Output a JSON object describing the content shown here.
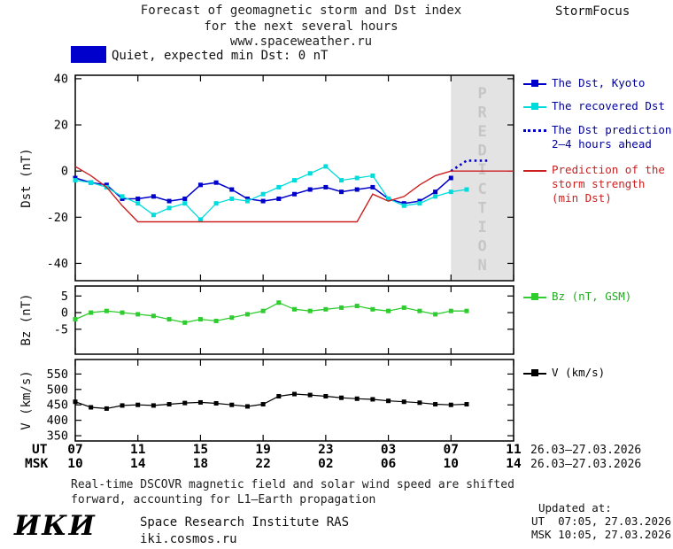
{
  "header": {
    "title_line1": "Forecast of geomagnetic storm and Dst index",
    "title_line2": "for the next several hours",
    "title_line3": "www.spaceweather.ru",
    "brand": "StormFocus"
  },
  "status": {
    "label": "Quiet, expected min Dst: 0 nT"
  },
  "colors": {
    "dst_blue": "#0000cc",
    "recovered_cyan": "#00dcdc",
    "prediction_red": "#cc2020",
    "bz_green": "#2fcc2f",
    "v_black": "#000000",
    "band_fill": "#e3e3e3",
    "band_text": "#c6c6c6",
    "status_box": "#0000cc",
    "legend_blue_text": "#000099",
    "legend_green_text": "#22aa22"
  },
  "legend": {
    "dst_kyoto": "The Dst, Kyoto",
    "recovered": "The recovered Dst",
    "dst_prediction": "The Dst prediction\n2–4 hours ahead",
    "storm_strength": "Prediction of the\nstorm strength\n(min Dst)",
    "bz": "Bz (nT, GSM)",
    "v": "V (km/s)"
  },
  "xaxis": {
    "ut_label": "UT",
    "msk_label": "MSK",
    "ut_ticks": [
      "07",
      "11",
      "15",
      "19",
      "23",
      "03",
      "07",
      "11"
    ],
    "msk_ticks": [
      "10",
      "14",
      "18",
      "22",
      "02",
      "06",
      "10",
      "14"
    ],
    "ut_date": "26.03–27.03.2026",
    "msk_date": "26.03–27.03.2026"
  },
  "footer": {
    "note_line1": "Real-time DSCOVR magnetic field and solar wind speed are shifted",
    "note_line2": "forward, accounting for L1–Earth propagation",
    "updated_label": "Updated at:",
    "updated_ut": "UT  07:05, 27.03.2026",
    "updated_msk": "MSK 10:05, 27.03.2026",
    "logo": "ИКИ",
    "institute": "Space Research Institute RAS",
    "site": "iki.cosmos.ru"
  },
  "chart_data": [
    {
      "type": "line",
      "panel": "dst",
      "title": "Forecast of geomagnetic storm and Dst index for the next several hours",
      "ylabel": "Dst (nT)",
      "xlabel": "UT hours 26.03–27.03.2026",
      "xlim": [
        7,
        35
      ],
      "ylim": [
        -47.5,
        41.5
      ],
      "yticks": [
        -40,
        -20,
        0,
        20,
        40
      ],
      "xticks": [
        7,
        11,
        15,
        19,
        23,
        27,
        31,
        35
      ],
      "grid": false,
      "legend_position": "right",
      "prediction_band": {
        "from": 31,
        "to": 35,
        "label": "PREDICTION"
      },
      "series": [
        {
          "name": "The Dst, Kyoto",
          "color_key": "dst_blue",
          "marker": "square",
          "line_width": 1.5,
          "x_start": 7,
          "x_step": 1,
          "values": [
            -3,
            -5,
            -6,
            -12,
            -12,
            -11,
            -13,
            -12,
            -6,
            -5,
            -8,
            -12,
            -13,
            -12,
            -10,
            -8,
            -7,
            -9,
            -8,
            -7,
            -12,
            -14,
            -13,
            -9,
            -3
          ]
        },
        {
          "name": "The recovered Dst",
          "color_key": "recovered_cyan",
          "marker": "square",
          "line_width": 1.3,
          "x_start": 7,
          "x_step": 1,
          "values": [
            -4,
            -5,
            -7,
            -11,
            -14,
            -19,
            -16,
            -14,
            -21,
            -14,
            -12,
            -13,
            -10,
            -7,
            -4,
            -1,
            2,
            -4,
            -3,
            -2,
            -12,
            -15,
            -14,
            -11,
            -9,
            -8
          ]
        },
        {
          "name": "The Dst prediction 2–4 hours ahead",
          "color_key": "dst_blue",
          "style": "dotted",
          "line_width": 2.6,
          "x": [
            31,
            32,
            33.5
          ],
          "values": [
            0,
            4.5,
            4.5
          ]
        },
        {
          "name": "Prediction of the storm strength (min Dst)",
          "color_key": "prediction_red",
          "line_width": 1.4,
          "x": [
            7,
            8,
            9,
            10,
            11,
            25,
            26,
            27,
            28,
            29,
            30,
            31,
            35
          ],
          "values": [
            2,
            -2,
            -7,
            -15,
            -22,
            -22,
            -10,
            -13,
            -11,
            -6,
            -2,
            0,
            0
          ]
        }
      ]
    },
    {
      "type": "line",
      "panel": "bz",
      "ylabel": "Bz (nT)",
      "xlim": [
        7,
        35
      ],
      "ylim": [
        -12.5,
        8
      ],
      "yticks": [
        -5,
        0,
        5
      ],
      "xticks": [
        7,
        11,
        15,
        19,
        23,
        27,
        31,
        35
      ],
      "grid": false,
      "series": [
        {
          "name": "Bz (nT, GSM)",
          "color_key": "bz_green",
          "marker": "square",
          "line_width": 1.3,
          "x_start": 7,
          "x_step": 1,
          "values": [
            -2,
            0,
            0.5,
            0,
            -0.5,
            -1,
            -2,
            -3,
            -2,
            -2.5,
            -1.5,
            -0.5,
            0.5,
            3,
            1,
            0.5,
            1,
            1.5,
            2,
            1,
            0.5,
            1.5,
            0.5,
            -0.5,
            0.5,
            0.5
          ]
        }
      ]
    },
    {
      "type": "line",
      "panel": "v",
      "ylabel": "V (km/s)",
      "xlim": [
        7,
        35
      ],
      "ylim": [
        333,
        597
      ],
      "yticks": [
        350,
        400,
        450,
        500,
        550
      ],
      "xticks": [
        7,
        11,
        15,
        19,
        23,
        27,
        31,
        35
      ],
      "grid": false,
      "series": [
        {
          "name": "V (km/s)",
          "color_key": "v_black",
          "marker": "square",
          "line_width": 1.2,
          "x_start": 7,
          "x_step": 1,
          "values": [
            460,
            442,
            438,
            448,
            450,
            448,
            452,
            456,
            458,
            455,
            450,
            445,
            452,
            478,
            485,
            482,
            478,
            473,
            470,
            468,
            463,
            460,
            457,
            452,
            450,
            452
          ]
        }
      ]
    }
  ]
}
